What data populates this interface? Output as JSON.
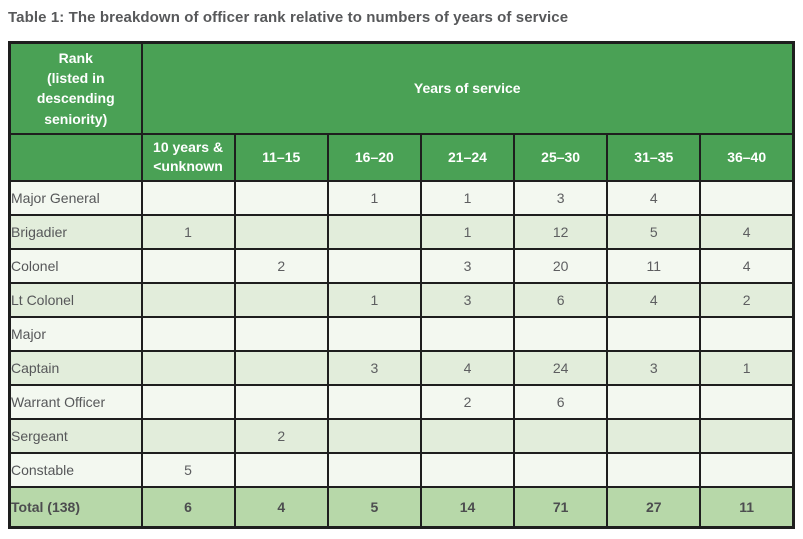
{
  "caption": "Table 1: The breakdown of officer rank relative to numbers of years of service",
  "table": {
    "corner_header": "Rank\n(listed in\ndescending\nseniority)",
    "group_header": "Years of service",
    "col_headers": [
      "10 years &\n<unknown",
      "11–15",
      "16–20",
      "21–24",
      "25–30",
      "31–35",
      "36–40"
    ],
    "rows": [
      {
        "rank": "Major General",
        "values": [
          "",
          "",
          "1",
          "1",
          "3",
          "4",
          ""
        ]
      },
      {
        "rank": "Brigadier",
        "values": [
          "1",
          "",
          "",
          "1",
          "12",
          "5",
          "4"
        ]
      },
      {
        "rank": "Colonel",
        "values": [
          "",
          "2",
          "",
          "3",
          "20",
          "11",
          "4"
        ]
      },
      {
        "rank": "Lt Colonel",
        "values": [
          "",
          "",
          "1",
          "3",
          "6",
          "4",
          "2"
        ]
      },
      {
        "rank": "Major",
        "values": [
          "",
          "",
          "",
          "",
          "",
          "",
          ""
        ]
      },
      {
        "rank": "Captain",
        "values": [
          "",
          "",
          "3",
          "4",
          "24",
          "3",
          "1"
        ]
      },
      {
        "rank": "Warrant Officer",
        "values": [
          "",
          "",
          "",
          "2",
          "6",
          "",
          ""
        ]
      },
      {
        "rank": "Sergeant",
        "values": [
          "",
          "2",
          "",
          "",
          "",
          "",
          ""
        ]
      },
      {
        "rank": "Constable",
        "values": [
          "5",
          "",
          "",
          "",
          "",
          "",
          ""
        ]
      }
    ],
    "total": {
      "rank": "Total (138)",
      "values": [
        "6",
        "4",
        "5",
        "14",
        "71",
        "27",
        "11"
      ]
    }
  },
  "colors": {
    "header_green": "#4aa155",
    "row_pale": "#f3f8f0",
    "row_light_green": "#e2eddb",
    "total_green": "#b7d8a9",
    "border": "#1e1e1e",
    "header_text": "#ffffff",
    "caption_text": "#57585a",
    "cell_text": "#5d5e60"
  }
}
